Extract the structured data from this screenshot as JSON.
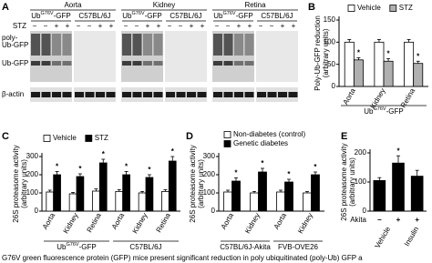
{
  "blot": {
    "panel": "A",
    "tissues": [
      {
        "name": "Aorta",
        "strains": [
          {
            "text": "Ub",
            "sup": "G76V",
            "tail": "-GFP"
          },
          "C57BL/6J"
        ]
      },
      {
        "name": "Kidney",
        "strains": [
          {
            "text": "Ub",
            "sup": "G76V",
            "tail": "-GFP"
          },
          "C57BL/6J"
        ]
      },
      {
        "name": "Retina",
        "strains": [
          {
            "text": "Ub",
            "sup": "G76V",
            "tail": "-GFP"
          },
          "C57BL/6J"
        ]
      }
    ],
    "signs": [
      "−",
      "−",
      "+",
      "+"
    ],
    "rows": {
      "stz": "STZ",
      "poly_ub": [
        "poly-",
        "Ub-GFP"
      ],
      "ub_gfp": "Ub-GFP",
      "actin": "β-actin"
    }
  },
  "chart_data": [
    {
      "type": "bar",
      "panel": "B",
      "ylabel": [
        "Poly-Ub-GFP reduction",
        "(arbitrary units)"
      ],
      "categories": [
        "Aorta",
        "Kidney",
        "Retina"
      ],
      "groups": [
        {
          "label": {
            "text": "Ub",
            "sup": "G76V",
            "tail": "-GFP"
          },
          "count": 3
        }
      ],
      "ylim": [
        0,
        150
      ],
      "yticks": [
        0,
        50,
        100,
        150
      ],
      "series": [
        {
          "name": "Vehicle",
          "color": "#ffffff",
          "values": [
            100,
            100,
            100
          ],
          "errors": [
            6,
            6,
            6
          ]
        },
        {
          "name": "STZ",
          "color": "#b0b0b0",
          "values": [
            60,
            57,
            52
          ],
          "errors": [
            5,
            6,
            5
          ],
          "stars": [
            "*",
            "*",
            "*"
          ]
        }
      ]
    },
    {
      "type": "bar",
      "panel": "C",
      "ylabel": [
        "26S proteasome activity",
        "(arbitrary units)"
      ],
      "categories": [
        "Aorta",
        "Kidney",
        "Retina",
        "Aorta",
        "Kidney",
        "Retina"
      ],
      "groups": [
        {
          "label": {
            "text": "Ub",
            "sup": "G76V",
            "tail": "-GFP"
          },
          "count": 3
        },
        {
          "label": "C57BL/6J",
          "count": 3
        }
      ],
      "ylim": [
        0,
        300
      ],
      "yticks": [
        0,
        100,
        200,
        300
      ],
      "series": [
        {
          "name": "Vehicle",
          "color": "#ffffff",
          "values": [
            105,
            95,
            110,
            108,
            100,
            108
          ],
          "errors": [
            10,
            8,
            12,
            10,
            8,
            10
          ]
        },
        {
          "name": "STZ",
          "color": "#000000",
          "values": [
            200,
            190,
            265,
            200,
            185,
            275
          ],
          "errors": [
            18,
            15,
            20,
            18,
            15,
            25
          ],
          "stars": [
            "*",
            "*",
            "*",
            "*",
            "*",
            "*"
          ]
        }
      ]
    },
    {
      "type": "bar",
      "panel": "D",
      "ylabel": [
        "26S proteasome activity",
        "(arbitrary units)"
      ],
      "categories": [
        "Aorta",
        "Kidney",
        "Aorta",
        "Kidney"
      ],
      "groups": [
        {
          "label": "C57BL/6J-Akita",
          "count": 2
        },
        {
          "label": "FVB-OVE26",
          "count": 2
        }
      ],
      "ylim": [
        0,
        300
      ],
      "yticks": [
        0,
        100,
        200,
        300
      ],
      "series": [
        {
          "name": "Non-diabetes (control)",
          "color": "#ffffff",
          "values": [
            105,
            100,
            105,
            100
          ],
          "errors": [
            10,
            8,
            10,
            8
          ]
        },
        {
          "name": "Genetic diabetes",
          "color": "#000000",
          "values": [
            165,
            215,
            160,
            200
          ],
          "errors": [
            18,
            20,
            15,
            15
          ],
          "stars": [
            "*",
            "*",
            "*",
            "*"
          ]
        }
      ]
    },
    {
      "type": "bar",
      "panel": "E",
      "ylabel": [
        "26S proteasome activity",
        "(arbitrary units)"
      ],
      "category_label": "Akita",
      "categories": [
        "−",
        "+",
        "+"
      ],
      "groups": [
        {
          "label": "Vehicle",
          "count": 2
        },
        {
          "label": "Insulin",
          "count": 1
        }
      ],
      "ylim": [
        0,
        200
      ],
      "yticks": [
        0,
        100,
        200
      ],
      "series": [
        {
          "color": "#000000",
          "values": [
            105,
            165,
            120
          ],
          "errors": [
            10,
            25,
            20
          ],
          "stars": [
            null,
            "*",
            null
          ]
        }
      ]
    }
  ],
  "caption": "G76V green fluorescence protein (GFP) mice present significant reduction in poly ubiquitinated (poly-Ub) GFP a"
}
